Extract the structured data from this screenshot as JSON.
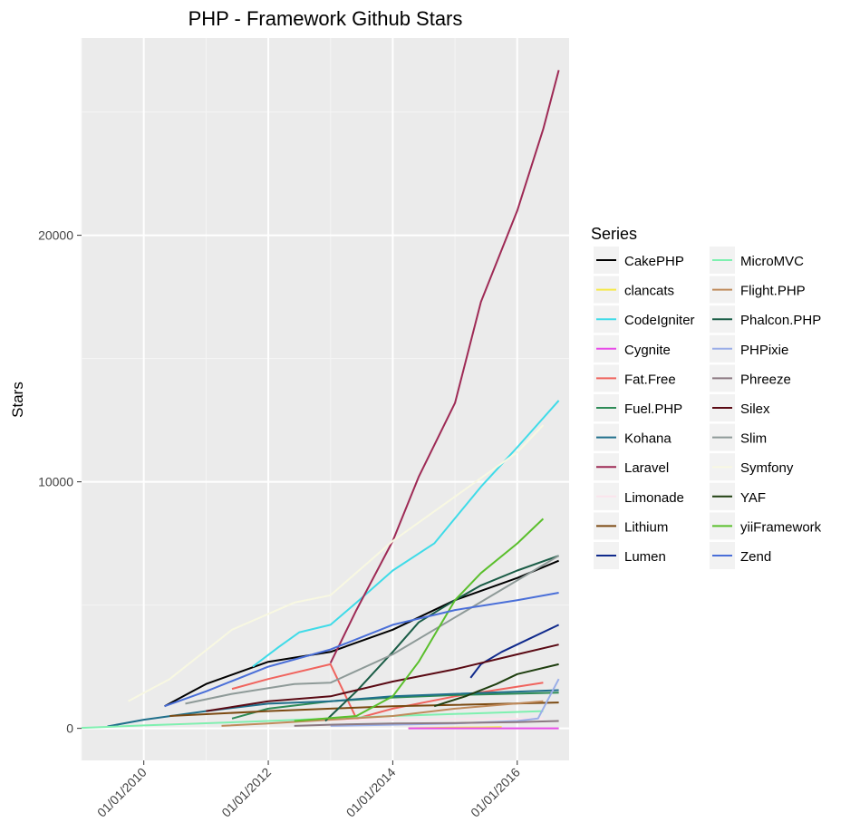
{
  "chart_data": {
    "type": "line",
    "title": "PHP - Framework Github Stars",
    "xlabel": "",
    "ylabel": "Stars",
    "x_ticks": [
      "01/01/2010",
      "01/01/2012",
      "01/01/2014",
      "01/01/2016"
    ],
    "y_ticks": [
      0,
      10000,
      20000
    ],
    "xlim": [
      "2009-01-01",
      "2016-11-01"
    ],
    "ylim": [
      -1300,
      28000
    ],
    "grid": true,
    "legend_title": "Series",
    "legend_position": "right",
    "series": [
      {
        "name": "CakePHP",
        "color": "#000000",
        "x": [
          "2010-05",
          "2011-01",
          "2012-01",
          "2013-01",
          "2014-01",
          "2015-01",
          "2016-01",
          "2016-09"
        ],
        "y": [
          900,
          1800,
          2700,
          3100,
          4000,
          5200,
          6100,
          6800
        ]
      },
      {
        "name": "clancats",
        "color": "#f5e94a",
        "x": [
          "2014-04",
          "2014-06",
          "2014-09",
          "2015-01",
          "2015-06",
          "2015-10"
        ],
        "y": [
          0,
          10,
          20,
          30,
          40,
          50
        ]
      },
      {
        "name": "CodeIgniter",
        "color": "#3fdbe8",
        "x": [
          "2011-10",
          "2012-03",
          "2012-07",
          "2013-01",
          "2013-06",
          "2014-01",
          "2014-09",
          "2015-06",
          "2016-01",
          "2016-09"
        ],
        "y": [
          2500,
          3300,
          3900,
          4200,
          5100,
          6400,
          7500,
          9800,
          11400,
          13300
        ]
      },
      {
        "name": "Cygnite",
        "color": "#e84be8",
        "x": [
          "2014-04",
          "2014-09",
          "2015-03",
          "2015-09",
          "2016-03",
          "2016-09"
        ],
        "y": [
          0,
          0,
          0,
          0,
          0,
          0
        ]
      },
      {
        "name": "Fat.Free",
        "color": "#f0645e",
        "x": [
          "2011-06",
          "2012-01",
          "2013-01",
          "2013-06",
          "2014-01",
          "2015-01",
          "2016-06"
        ],
        "y": [
          1600,
          2000,
          2600,
          400,
          800,
          1300,
          1850
        ]
      },
      {
        "name": "Fuel.PHP",
        "color": "#2e8b57",
        "x": [
          "2011-06",
          "2012-01",
          "2013-01",
          "2014-01",
          "2015-01",
          "2016-09"
        ],
        "y": [
          400,
          800,
          1100,
          1250,
          1350,
          1450
        ]
      },
      {
        "name": "Kohana",
        "color": "#1f6f8b",
        "x": [
          "2009-06",
          "2010-01",
          "2011-01",
          "2012-01",
          "2013-01",
          "2014-01",
          "2015-01",
          "2016-09"
        ],
        "y": [
          80,
          350,
          700,
          1000,
          1100,
          1300,
          1400,
          1550
        ]
      },
      {
        "name": "Laravel",
        "color": "#9e2a55",
        "x": [
          "2013-01",
          "2013-06",
          "2014-01",
          "2014-06",
          "2015-01",
          "2015-06",
          "2016-01",
          "2016-06",
          "2016-09"
        ],
        "y": [
          2650,
          4800,
          7600,
          10200,
          13200,
          17300,
          21000,
          24300,
          26700
        ]
      },
      {
        "name": "Limonade",
        "color": "#fbe4ec",
        "x": [
          "2010-06",
          "2012-01",
          "2014-01",
          "2016-06"
        ],
        "y": [
          200,
          300,
          350,
          400
        ]
      },
      {
        "name": "Lithium",
        "color": "#7b4a12",
        "x": [
          "2010-06",
          "2012-01",
          "2013-01",
          "2014-01",
          "2015-01",
          "2016-09"
        ],
        "y": [
          500,
          700,
          800,
          900,
          950,
          1050
        ]
      },
      {
        "name": "Lumen",
        "color": "#102a8c",
        "x": [
          "2015-04",
          "2015-06",
          "2015-10",
          "2016-03",
          "2016-09"
        ],
        "y": [
          2050,
          2600,
          3100,
          3600,
          4200
        ]
      },
      {
        "name": "MicroMVC",
        "color": "#7ff0b0",
        "x": [
          "2009-01",
          "2010-01",
          "2012-01",
          "2014-01",
          "2016-06"
        ],
        "y": [
          20,
          120,
          300,
          500,
          700
        ]
      },
      {
        "name": "Flight.PHP",
        "color": "#c08b5c",
        "x": [
          "2011-04",
          "2012-01",
          "2013-01",
          "2014-01",
          "2015-01",
          "2016-06"
        ],
        "y": [
          100,
          200,
          350,
          500,
          800,
          1100
        ]
      },
      {
        "name": "Phalcon.PHP",
        "color": "#1a5c46",
        "x": [
          "2012-12",
          "2013-06",
          "2014-01",
          "2014-06",
          "2015-01",
          "2015-06",
          "2016-01",
          "2016-09"
        ],
        "y": [
          300,
          1500,
          3100,
          4300,
          5200,
          5800,
          6400,
          7000
        ]
      },
      {
        "name": "PHPixie",
        "color": "#9aaee8",
        "x": [
          "2013-01",
          "2014-01",
          "2015-01",
          "2016-01",
          "2016-05",
          "2016-09"
        ],
        "y": [
          100,
          150,
          200,
          300,
          400,
          2000
        ]
      },
      {
        "name": "Phreeze",
        "color": "#8c7a82",
        "x": [
          "2012-06",
          "2013-01",
          "2014-01",
          "2015-01",
          "2016-01",
          "2016-09"
        ],
        "y": [
          100,
          150,
          200,
          220,
          250,
          300
        ]
      },
      {
        "name": "Silex",
        "color": "#5a0a14",
        "x": [
          "2011-01",
          "2012-01",
          "2013-01",
          "2014-01",
          "2015-01",
          "2016-01",
          "2016-09"
        ],
        "y": [
          700,
          1100,
          1300,
          1900,
          2400,
          3000,
          3400
        ]
      },
      {
        "name": "Slim",
        "color": "#8e9a98",
        "x": [
          "2010-09",
          "2011-06",
          "2012-06",
          "2013-01",
          "2014-01",
          "2015-01",
          "2016-01",
          "2016-09"
        ],
        "y": [
          1000,
          1400,
          1800,
          1850,
          3000,
          4500,
          6000,
          7000
        ]
      },
      {
        "name": "Symfony",
        "color": "#f8f8e2",
        "x": [
          "2009-10",
          "2010-06",
          "2011-06",
          "2012-06",
          "2013-01",
          "2014-01",
          "2015-01",
          "2016-01",
          "2016-06"
        ],
        "y": [
          1100,
          2000,
          4000,
          5100,
          5400,
          7600,
          9400,
          11200,
          12300
        ]
      },
      {
        "name": "YAF",
        "color": "#1f3f10",
        "x": [
          "2014-09",
          "2015-03",
          "2015-09",
          "2016-01",
          "2016-09"
        ],
        "y": [
          900,
          1300,
          1800,
          2200,
          2600
        ]
      },
      {
        "name": "yiiFramework",
        "color": "#5abf2c",
        "x": [
          "2012-06",
          "2013-06",
          "2014-01",
          "2014-06",
          "2015-01",
          "2015-06",
          "2016-01",
          "2016-06"
        ],
        "y": [
          300,
          500,
          1300,
          2700,
          5200,
          6300,
          7500,
          8500
        ]
      },
      {
        "name": "Zend",
        "color": "#4a6fd8",
        "x": [
          "2010-05",
          "2011-01",
          "2012-01",
          "2013-01",
          "2014-01",
          "2015-01",
          "2016-01",
          "2016-09"
        ],
        "y": [
          900,
          1500,
          2500,
          3200,
          4200,
          4800,
          5200,
          5500
        ]
      }
    ]
  }
}
